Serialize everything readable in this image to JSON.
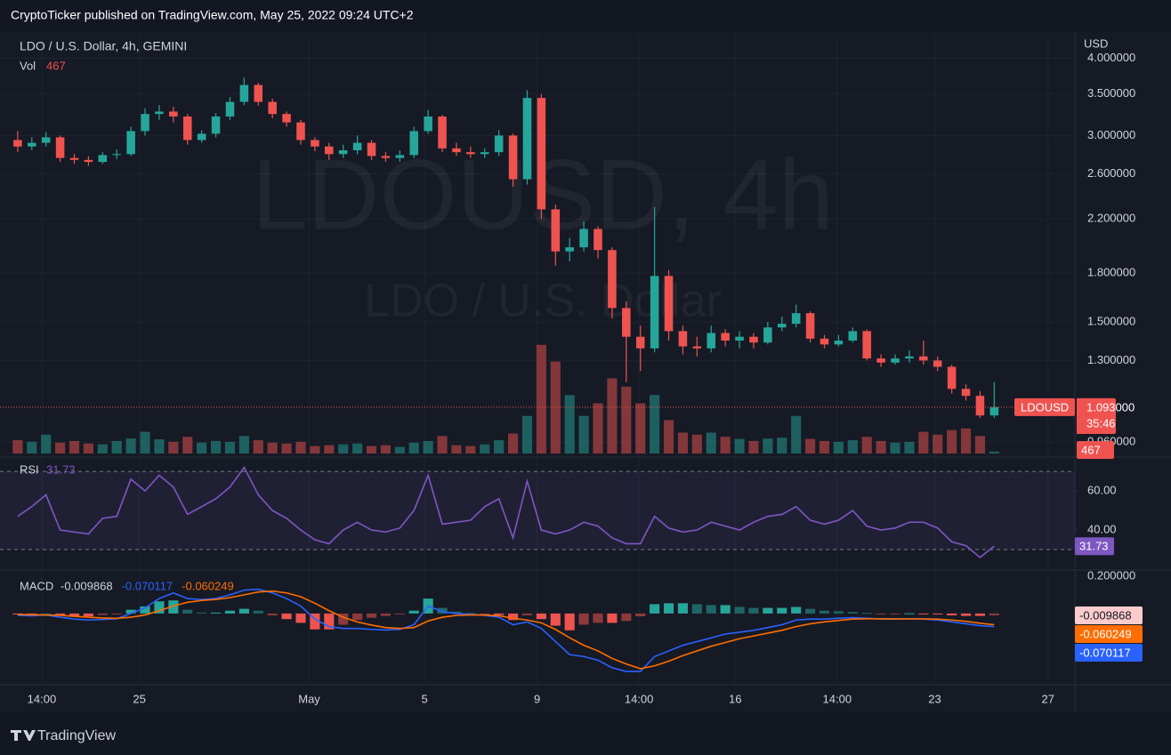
{
  "header": {
    "publisher": "CryptoTicker published on TradingView.com, May 25, 2022 09:24 UTC+2"
  },
  "footer": {
    "brand": "TradingView"
  },
  "chart_data": [
    {
      "type": "candlestick",
      "title": "LDO / U.S. Dollar, 4h, GEMINI",
      "watermark": "LDOUSD, 4h",
      "watermark_subtitle": "LDO / U.S. Dollar",
      "y_axis_label": "USD",
      "log_scale": true,
      "grid": true,
      "up_color": "#26a69a",
      "down_color": "#ef5350",
      "xlim": [
        -1.25,
        74.7
      ],
      "xticks": [
        {
          "value": 1.7,
          "label": "14:00"
        },
        {
          "value": 8.6,
          "label": "25"
        },
        {
          "value": 20.6,
          "label": "May"
        },
        {
          "value": 28.75,
          "label": "5"
        },
        {
          "value": 36.7,
          "label": "9"
        },
        {
          "value": 43.9,
          "label": "14:00"
        },
        {
          "value": 50.7,
          "label": "16"
        },
        {
          "value": 57.9,
          "label": "14:00"
        },
        {
          "value": 64.8,
          "label": "23"
        },
        {
          "value": 72.8,
          "label": "27"
        }
      ],
      "ylim": [
        0.92,
        4.35
      ],
      "yticks": [
        {
          "value": 4.0,
          "label": "4.000000"
        },
        {
          "value": 3.5,
          "label": "3.500000"
        },
        {
          "value": 3.0,
          "label": "3.000000"
        },
        {
          "value": 2.6,
          "label": "2.600000"
        },
        {
          "value": 2.2,
          "label": "2.200000"
        },
        {
          "value": 1.8,
          "label": "1.800000"
        },
        {
          "value": 1.5,
          "label": "1.500000"
        },
        {
          "value": 1.3,
          "label": "1.300000"
        },
        {
          "value": 0.96,
          "label": "0.960000"
        }
      ],
      "open": [
        2.95,
        2.88,
        2.92,
        2.98,
        2.76,
        2.74,
        2.72,
        2.79,
        2.8,
        3.05,
        3.25,
        3.28,
        3.22,
        2.95,
        3.02,
        3.22,
        3.4,
        3.62,
        3.4,
        3.25,
        3.15,
        2.95,
        2.88,
        2.8,
        2.84,
        2.92,
        2.78,
        2.76,
        2.79,
        3.05,
        3.22,
        2.86,
        2.82,
        2.8,
        2.82,
        3.0,
        2.55,
        3.45,
        2.28,
        1.95,
        1.98,
        2.12,
        1.96,
        1.58,
        1.42,
        1.36,
        1.78,
        1.45,
        1.37,
        1.36,
        1.44,
        1.4,
        1.42,
        1.39,
        1.47,
        1.49,
        1.55,
        1.41,
        1.38,
        1.4,
        1.45,
        1.31,
        1.29,
        1.31,
        1.32,
        1.3,
        1.27,
        1.17,
        1.14,
        1.06
      ],
      "high": [
        3.05,
        2.98,
        3.04,
        3.0,
        2.8,
        2.78,
        2.82,
        2.85,
        3.1,
        3.32,
        3.36,
        3.34,
        3.25,
        3.06,
        3.26,
        3.46,
        3.72,
        3.65,
        3.44,
        3.28,
        3.18,
        2.98,
        2.92,
        2.9,
        3.0,
        2.95,
        2.82,
        2.84,
        3.1,
        3.3,
        3.24,
        2.92,
        2.88,
        2.86,
        3.06,
        3.02,
        3.55,
        3.5,
        2.32,
        2.05,
        2.18,
        2.14,
        1.98,
        1.62,
        1.48,
        2.3,
        1.82,
        1.48,
        1.42,
        1.48,
        1.46,
        1.45,
        1.44,
        1.5,
        1.53,
        1.6,
        1.56,
        1.43,
        1.43,
        1.47,
        1.46,
        1.33,
        1.33,
        1.35,
        1.4,
        1.32,
        1.28,
        1.19,
        1.16,
        1.2
      ],
      "low": [
        2.82,
        2.84,
        2.88,
        2.72,
        2.7,
        2.68,
        2.7,
        2.75,
        2.78,
        3.0,
        3.18,
        3.15,
        2.9,
        2.92,
        2.98,
        3.18,
        3.36,
        3.35,
        3.2,
        3.1,
        2.9,
        2.83,
        2.74,
        2.76,
        2.8,
        2.74,
        2.72,
        2.72,
        2.76,
        3.02,
        2.82,
        2.78,
        2.76,
        2.76,
        2.78,
        2.48,
        2.5,
        2.2,
        1.85,
        1.88,
        1.95,
        1.9,
        1.52,
        1.2,
        1.25,
        1.34,
        1.4,
        1.33,
        1.32,
        1.34,
        1.37,
        1.36,
        1.36,
        1.38,
        1.45,
        1.47,
        1.39,
        1.36,
        1.37,
        1.39,
        1.3,
        1.27,
        1.28,
        1.29,
        1.28,
        1.25,
        1.15,
        1.12,
        1.05,
        1.05
      ],
      "close": [
        2.88,
        2.92,
        2.98,
        2.76,
        2.74,
        2.72,
        2.79,
        2.8,
        3.05,
        3.25,
        3.28,
        3.22,
        2.95,
        3.02,
        3.22,
        3.4,
        3.62,
        3.4,
        3.25,
        3.15,
        2.95,
        2.88,
        2.8,
        2.84,
        2.92,
        2.78,
        2.76,
        2.79,
        3.05,
        3.22,
        2.86,
        2.82,
        2.8,
        2.82,
        3.0,
        2.55,
        3.45,
        2.28,
        1.95,
        1.98,
        2.12,
        1.96,
        1.58,
        1.42,
        1.36,
        1.78,
        1.45,
        1.37,
        1.36,
        1.44,
        1.4,
        1.42,
        1.39,
        1.47,
        1.49,
        1.55,
        1.41,
        1.38,
        1.4,
        1.45,
        1.31,
        1.29,
        1.31,
        1.32,
        1.3,
        1.27,
        1.17,
        1.14,
        1.06,
        1.093
      ],
      "volume": {
        "name": "Vol",
        "lim": [
          0,
          100000
        ],
        "values": [
          3200,
          2800,
          4500,
          2600,
          3000,
          2400,
          2200,
          3000,
          3600,
          5200,
          3400,
          2800,
          4000,
          2600,
          3000,
          2800,
          4200,
          3200,
          2600,
          2400,
          2800,
          1800,
          2000,
          2200,
          2400,
          1800,
          2000,
          1600,
          2600,
          3000,
          4200,
          2000,
          1800,
          2200,
          3200,
          4800,
          9000,
          26000,
          22000,
          14000,
          9000,
          12000,
          18000,
          16000,
          12000,
          14000,
          8000,
          5000,
          4500,
          5000,
          4000,
          3500,
          3000,
          3600,
          3800,
          9000,
          3500,
          3000,
          2800,
          3200,
          4000,
          3000,
          2600,
          2800,
          5200,
          4500,
          5600,
          6000,
          4200,
          467
        ]
      },
      "price_tag": {
        "name": "LDOUSD",
        "value": 1.093,
        "label": "1.093000",
        "countdown": "35:46"
      }
    },
    {
      "type": "line",
      "title": "RSI",
      "color": "#7e57c2",
      "band": [
        30,
        70
      ],
      "ylim": [
        20,
        75.5
      ],
      "yticks": [
        {
          "value": 60,
          "label": "60.00"
        },
        {
          "value": 40,
          "label": "40.00"
        }
      ],
      "values": [
        47,
        52,
        58,
        40,
        39,
        38,
        46,
        47,
        66,
        60,
        68,
        62,
        48,
        52,
        56,
        62,
        72,
        58,
        50,
        46,
        40,
        35,
        33,
        40,
        44,
        40,
        39,
        41,
        50,
        68,
        43,
        44,
        45,
        52,
        56,
        36,
        65,
        40,
        38,
        40,
        44,
        42,
        36,
        33,
        33,
        47,
        41,
        39,
        40,
        44,
        42,
        40,
        44,
        47,
        48,
        52,
        45,
        43,
        45,
        50,
        42,
        40,
        41,
        44,
        44,
        41,
        34,
        32,
        26,
        31.73
      ]
    },
    {
      "type": "macd",
      "title": "MACD",
      "ylim": [
        -0.381,
        0.223
      ],
      "yticks": [
        {
          "value": 0.2,
          "label": "0.200000"
        }
      ],
      "histogram": {
        "color": "#ef5350",
        "up_color": "#26a69a",
        "values": [
          -0.005,
          -0.005,
          0.0,
          -0.01,
          -0.015,
          -0.015,
          -0.008,
          -0.002,
          0.02,
          0.038,
          0.065,
          0.07,
          0.02,
          0.005,
          0.005,
          0.015,
          0.025,
          0.015,
          -0.01,
          -0.03,
          -0.05,
          -0.085,
          -0.085,
          -0.06,
          -0.035,
          -0.023,
          -0.013,
          -0.005,
          0.015,
          0.08,
          0.03,
          0.01,
          0.003,
          -0.002,
          -0.008,
          -0.035,
          -0.01,
          -0.03,
          -0.065,
          -0.09,
          -0.06,
          -0.05,
          -0.05,
          -0.04,
          -0.015,
          0.05,
          0.055,
          0.055,
          0.05,
          0.045,
          0.045,
          0.035,
          0.03,
          0.03,
          0.03,
          0.035,
          0.025,
          0.015,
          0.012,
          0.008,
          0.003,
          -0.002,
          -0.001,
          0.001,
          -0.001,
          -0.005,
          -0.01,
          -0.013,
          -0.013,
          -0.009868
        ]
      },
      "macd": {
        "color": "#2962ff",
        "values": [
          -0.01,
          -0.012,
          -0.008,
          -0.02,
          -0.03,
          -0.035,
          -0.032,
          -0.028,
          0.0,
          0.03,
          0.08,
          0.11,
          0.08,
          0.075,
          0.08,
          0.1,
          0.125,
          0.13,
          0.11,
          0.08,
          0.04,
          -0.03,
          -0.07,
          -0.08,
          -0.08,
          -0.085,
          -0.088,
          -0.085,
          -0.06,
          0.04,
          0.01,
          0.0,
          -0.005,
          -0.01,
          -0.02,
          -0.06,
          -0.045,
          -0.08,
          -0.15,
          -0.22,
          -0.23,
          -0.25,
          -0.29,
          -0.31,
          -0.31,
          -0.23,
          -0.2,
          -0.17,
          -0.15,
          -0.13,
          -0.11,
          -0.1,
          -0.09,
          -0.075,
          -0.06,
          -0.035,
          -0.03,
          -0.03,
          -0.025,
          -0.022,
          -0.025,
          -0.03,
          -0.03,
          -0.028,
          -0.03,
          -0.035,
          -0.045,
          -0.055,
          -0.065,
          -0.070117
        ]
      },
      "signal": {
        "color": "#ff6d00",
        "values": [
          -0.005,
          -0.007,
          -0.008,
          -0.01,
          -0.015,
          -0.02,
          -0.024,
          -0.026,
          -0.02,
          -0.008,
          0.015,
          0.04,
          0.06,
          0.07,
          0.075,
          0.085,
          0.1,
          0.115,
          0.12,
          0.11,
          0.09,
          0.055,
          0.015,
          -0.02,
          -0.045,
          -0.062,
          -0.075,
          -0.08,
          -0.075,
          -0.04,
          -0.02,
          -0.01,
          -0.008,
          -0.008,
          -0.012,
          -0.025,
          -0.035,
          -0.05,
          -0.085,
          -0.13,
          -0.17,
          -0.2,
          -0.24,
          -0.27,
          -0.295,
          -0.28,
          -0.255,
          -0.225,
          -0.2,
          -0.175,
          -0.155,
          -0.135,
          -0.12,
          -0.105,
          -0.09,
          -0.07,
          -0.055,
          -0.045,
          -0.037,
          -0.03,
          -0.028,
          -0.028,
          -0.029,
          -0.029,
          -0.029,
          -0.03,
          -0.035,
          -0.042,
          -0.052,
          -0.060249
        ]
      }
    }
  ]
}
